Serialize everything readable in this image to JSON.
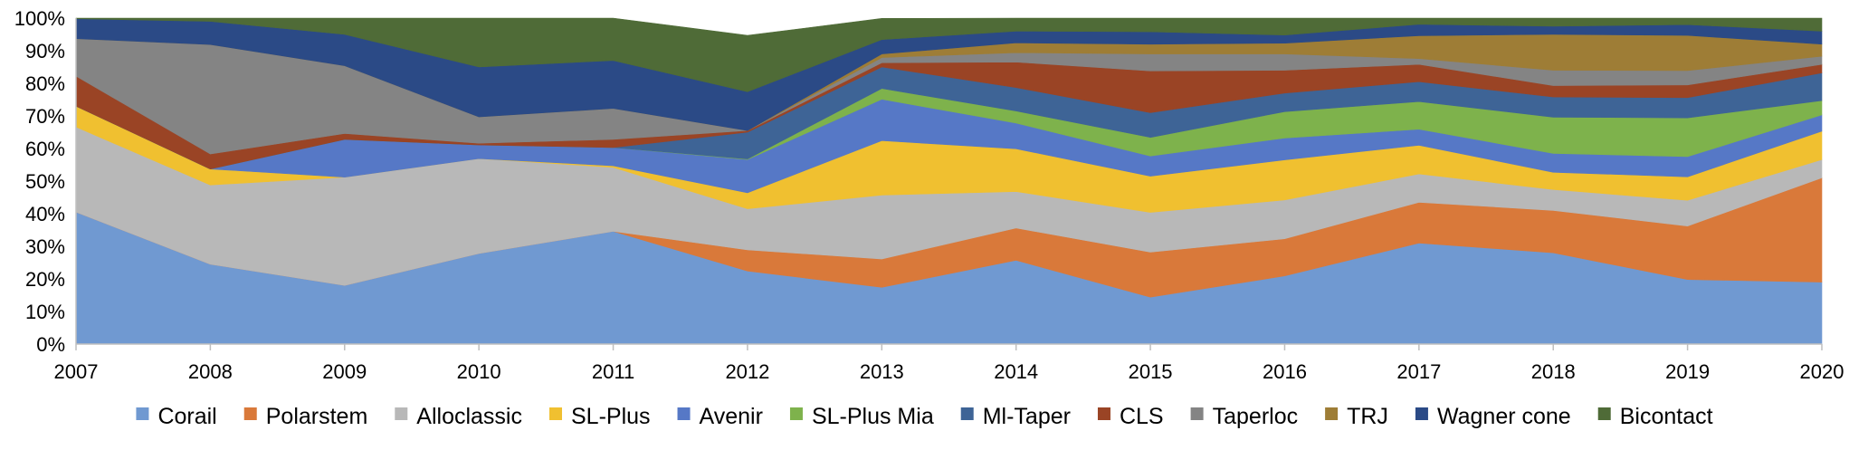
{
  "chart_data": {
    "type": "area",
    "stacked": true,
    "percent": true,
    "x": [
      "2007",
      "2008",
      "2009",
      "2010",
      "2011",
      "2012",
      "2013",
      "2014",
      "2015",
      "2016",
      "2017",
      "2018",
      "2019",
      "2020"
    ],
    "y_ticks": [
      "0%",
      "10%",
      "20%",
      "30%",
      "40%",
      "50%",
      "60%",
      "70%",
      "80%",
      "90%",
      "100%"
    ],
    "ylim": [
      0,
      100
    ],
    "legend_position": "bottom",
    "grid": false,
    "series": [
      {
        "name": "Corail",
        "color": "#7099D1",
        "values": [
          40.5,
          24.5,
          18.0,
          27.8,
          34.6,
          22.4,
          17.4,
          25.7,
          14.4,
          20.9,
          31.0,
          28.0,
          19.8,
          19.0
        ]
      },
      {
        "name": "Polarstem",
        "color": "#D9793A",
        "values": [
          0.0,
          0.0,
          0.0,
          0.0,
          0.0,
          6.5,
          8.7,
          9.9,
          13.8,
          11.4,
          12.5,
          13.0,
          16.4,
          32.0
        ]
      },
      {
        "name": "Alloclassic",
        "color": "#B8B8B8",
        "values": [
          26.1,
          24.3,
          33.2,
          29.1,
          19.6,
          12.6,
          19.6,
          11.2,
          12.2,
          11.9,
          8.7,
          6.4,
          7.9,
          5.6
        ]
      },
      {
        "name": "SL-Plus",
        "color": "#F0C030",
        "values": [
          6.4,
          4.9,
          0.0,
          0.0,
          0.5,
          4.9,
          16.7,
          13.1,
          11.1,
          12.3,
          8.8,
          5.3,
          7.2,
          8.7
        ]
      },
      {
        "name": "Avenir",
        "color": "#5678C6",
        "values": [
          0.0,
          0.0,
          11.6,
          4.2,
          5.6,
          10.2,
          12.7,
          7.9,
          6.2,
          6.7,
          4.9,
          5.8,
          6.2,
          5.0
        ]
      },
      {
        "name": "SL-Plus Mia",
        "color": "#7EB24C",
        "values": [
          0.0,
          0.0,
          0.0,
          0.0,
          0.0,
          0.2,
          3.3,
          3.7,
          5.7,
          8.1,
          8.5,
          11.1,
          11.9,
          4.4
        ]
      },
      {
        "name": "Ml-Taper",
        "color": "#3E6496",
        "values": [
          0.0,
          0.0,
          0.0,
          0.0,
          0.0,
          8.2,
          6.6,
          7.2,
          7.6,
          5.7,
          6.1,
          6.2,
          6.2,
          8.5
        ]
      },
      {
        "name": "CLS",
        "color": "#9A4425",
        "values": [
          9.2,
          4.6,
          1.8,
          0.5,
          2.5,
          0.5,
          1.3,
          7.8,
          12.8,
          7.0,
          5.3,
          3.5,
          3.9,
          2.6
        ]
      },
      {
        "name": "Taperloc",
        "color": "#848484",
        "values": [
          11.5,
          33.6,
          20.8,
          8.1,
          9.5,
          0.0,
          1.6,
          2.9,
          5.2,
          5.0,
          1.8,
          4.7,
          4.4,
          2.5
        ]
      },
      {
        "name": "TRJ",
        "color": "#9E7D36",
        "values": [
          0.0,
          0.0,
          0.0,
          0.0,
          0.0,
          0.0,
          1.1,
          3.0,
          3.0,
          3.3,
          7.0,
          11.0,
          10.8,
          3.7
        ]
      },
      {
        "name": "Wagner cone",
        "color": "#2B4A86",
        "values": [
          6.1,
          7.1,
          9.6,
          15.3,
          14.7,
          11.9,
          4.4,
          3.6,
          3.8,
          2.5,
          3.5,
          2.5,
          3.3,
          4.0
        ]
      },
      {
        "name": "Bicontact",
        "color": "#4F6B37",
        "values": [
          0.2,
          1.0,
          5.0,
          15.0,
          13.0,
          17.3,
          6.5,
          4.0,
          4.2,
          5.2,
          1.9,
          2.5,
          2.0,
          4.0
        ]
      }
    ]
  }
}
